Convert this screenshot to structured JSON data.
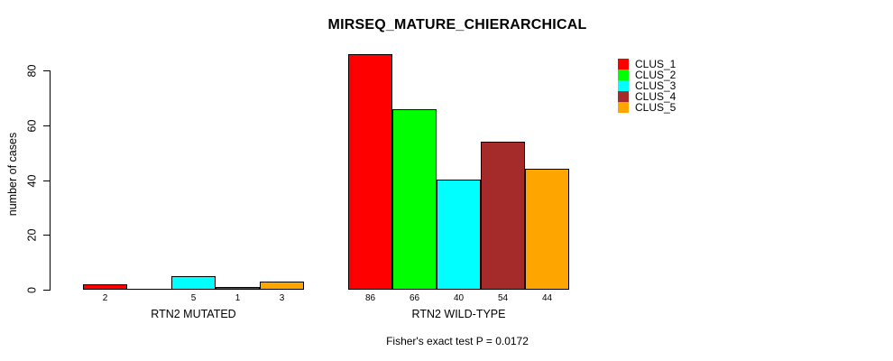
{
  "chart_data": {
    "type": "bar",
    "title": "MIRSEQ_MATURE_CHIERARCHICAL",
    "ylabel": "number of cases",
    "xlabel": "",
    "ylim": [
      0,
      86
    ],
    "yticks": [
      0,
      20,
      40,
      60,
      80
    ],
    "grid": false,
    "legend_position": "top-right",
    "categories": [
      "RTN2 MUTATED",
      "RTN2 WILD-TYPE"
    ],
    "series": [
      {
        "name": "CLUS_1",
        "color": "#ff0000",
        "values": [
          2,
          86
        ]
      },
      {
        "name": "CLUS_2",
        "color": "#00ff00",
        "values": [
          0,
          66
        ]
      },
      {
        "name": "CLUS_3",
        "color": "#00ffff",
        "values": [
          5,
          40
        ]
      },
      {
        "name": "CLUS_4",
        "color": "#a52a2a",
        "values": [
          1,
          54
        ]
      },
      {
        "name": "CLUS_5",
        "color": "#ffa500",
        "values": [
          3,
          44
        ]
      }
    ],
    "bar_value_labels": [
      [
        "2",
        "",
        "5",
        "1",
        "3"
      ],
      [
        "86",
        "66",
        "40",
        "54",
        "44"
      ]
    ],
    "annotation": "Fisher's exact test P = 0.0172"
  }
}
